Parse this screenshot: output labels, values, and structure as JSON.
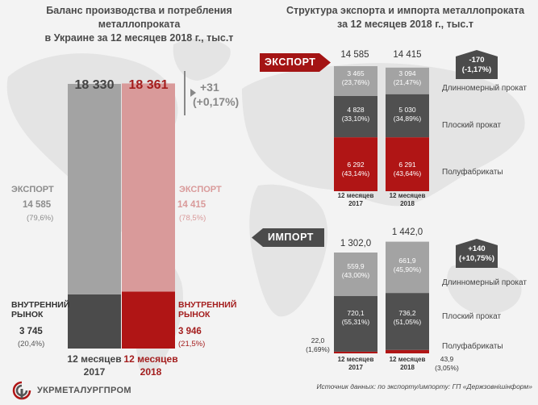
{
  "colors": {
    "export_2017": "#a3a3a3",
    "export_2018": "#d99a9a",
    "domestic_2017": "#4b4b4b",
    "domestic_2018": "#b01515",
    "long_products": "#a3a3a3",
    "flat_products": "#505050",
    "semis": "#b01515"
  },
  "left": {
    "title_line1": "Баланс производства и потребления металлопроката",
    "title_line2": "в Украине за 12 месяцев 2018 г., тыс.т",
    "total_2017": "18 330",
    "total_2018": "18 361",
    "change_abs": "+31",
    "change_pct": "(+0,17%)",
    "export_label": "ЭКСПОРТ",
    "export_2017_value": "14 585",
    "export_2017_pct": "(79,6%)",
    "export_2018_value": "14 415",
    "export_2018_pct": "(78,5%)",
    "domestic_label_l1": "ВНУТРЕННИЙ",
    "domestic_label_l2": "РЫНОК",
    "domestic_2017_value": "3 745",
    "domestic_2017_pct": "(20,4%)",
    "domestic_2018_value": "3 946",
    "domestic_2018_pct": "(21,5%)",
    "period_line1": "12 месяцев",
    "year_2017": "2017",
    "year_2018": "2018"
  },
  "right": {
    "title_line1": "Структура экспорта и импорта металлопроката",
    "title_line2": "за 12 месяцев 2018 г., тыс.т",
    "export_tag": "ЭКСПОРТ",
    "import_tag": "ИМПОРТ",
    "export_total_2017": "14 585",
    "export_total_2018": "14 415",
    "export_change_abs": "-170",
    "export_change_pct": "(-1,17%)",
    "import_total_2017": "1 302,0",
    "import_total_2018": "1 442,0",
    "import_change_abs": "+140",
    "import_change_pct": "(+10,75%)",
    "cat_long": "Длинномерный прокат",
    "cat_flat": "Плоский прокат",
    "cat_semis": "Полуфабрикаты",
    "period_line1": "12 месяцев",
    "year_2017": "2017",
    "year_2018": "2018",
    "exp_long_2017": "3 465",
    "exp_long_2017_pct": "(23,76%)",
    "exp_flat_2017": "4 828",
    "exp_flat_2017_pct": "(33,10%)",
    "exp_semis_2017": "6 292",
    "exp_semis_2017_pct": "(43,14%)",
    "exp_long_2018": "3 094",
    "exp_long_2018_pct": "(21,47%)",
    "exp_flat_2018": "5 030",
    "exp_flat_2018_pct": "(34,89%)",
    "exp_semis_2018": "6 291",
    "exp_semis_2018_pct": "(43,64%)",
    "imp_long_2017": "559,9",
    "imp_long_2017_pct": "(43,00%)",
    "imp_flat_2017": "720,1",
    "imp_flat_2017_pct": "(55,31%)",
    "imp_semis_2017": "22,0",
    "imp_semis_2017_pct": "(1,69%)",
    "imp_long_2018": "661,9",
    "imp_long_2018_pct": "(45,90%)",
    "imp_flat_2018": "736,2",
    "imp_flat_2018_pct": "(51,05%)",
    "imp_semis_2018": "43,9",
    "imp_semis_2018_pct": "(3,05%)"
  },
  "footer": {
    "logo_text": "УКРМЕТАЛУРГПРОМ",
    "source": "Источник данных: по экспорту/импорту: ГП «Держзовнішінформ»"
  },
  "chart_data": [
    {
      "type": "bar",
      "stacked": true,
      "title": "Баланс производства и потребления металлопроката в Украине за 12 месяцев 2018 г., тыс.т",
      "categories": [
        "12 месяцев 2017",
        "12 месяцев 2018"
      ],
      "series": [
        {
          "name": "ВНУТРЕННИЙ РЫНОК",
          "values": [
            3745,
            3946
          ]
        },
        {
          "name": "ЭКСПОРТ",
          "values": [
            14585,
            14415
          ]
        }
      ],
      "totals": [
        18330,
        18361
      ]
    },
    {
      "type": "bar",
      "stacked": true,
      "title": "ЭКСПОРТ",
      "categories": [
        "12 месяцев 2017",
        "12 месяцев 2018"
      ],
      "series": [
        {
          "name": "Полуфабрикаты",
          "values": [
            6292,
            6291
          ]
        },
        {
          "name": "Плоский прокат",
          "values": [
            4828,
            5030
          ]
        },
        {
          "name": "Длинномерный прокат",
          "values": [
            3465,
            3094
          ]
        }
      ],
      "totals": [
        14585,
        14415
      ]
    },
    {
      "type": "bar",
      "stacked": true,
      "title": "ИМПОРТ",
      "categories": [
        "12 месяцев 2017",
        "12 месяцев 2018"
      ],
      "series": [
        {
          "name": "Полуфабрикаты",
          "values": [
            22.0,
            43.9
          ]
        },
        {
          "name": "Плоский прокат",
          "values": [
            720.1,
            736.2
          ]
        },
        {
          "name": "Длинномерный прокат",
          "values": [
            559.9,
            661.9
          ]
        }
      ],
      "totals": [
        1302.0,
        1442.0
      ]
    }
  ]
}
